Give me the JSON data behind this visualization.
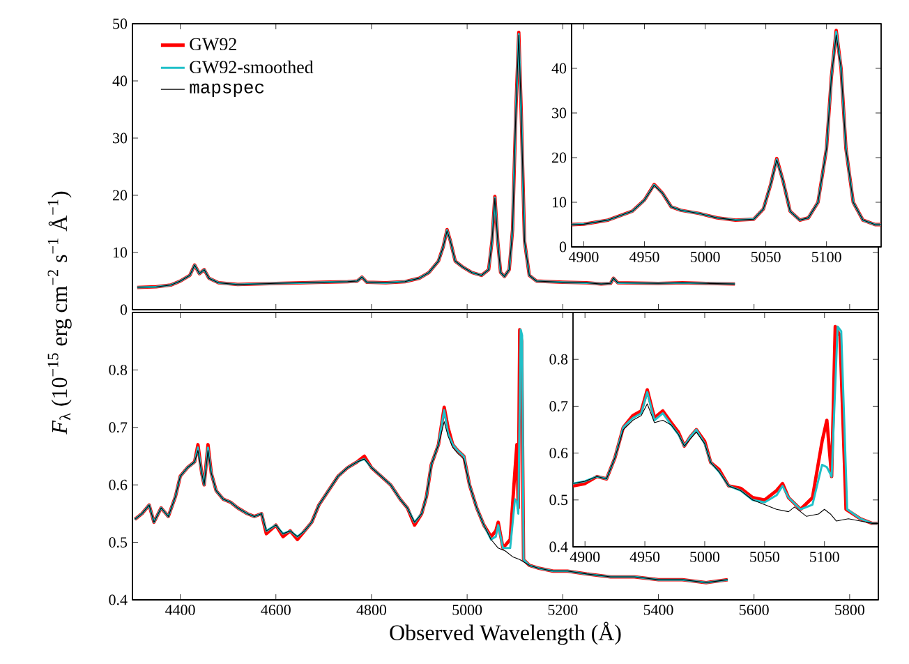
{
  "chart_data": [
    {
      "type": "line",
      "legend": "top left",
      "tick_labels": "y",
      "xlim": [
        4300,
        5860
      ],
      "ylim": [
        0,
        50
      ],
      "xticks": [
        4400,
        4600,
        4800,
        5000,
        5200,
        5400,
        5600,
        5800
      ],
      "yticks": [
        0,
        10,
        20,
        30,
        40,
        50
      ],
      "series": [
        {
          "name": "GW92",
          "color": "#ff0000",
          "x": [
            4310,
            4350,
            4380,
            4400,
            4420,
            4430,
            4440,
            4450,
            4460,
            4480,
            4520,
            4560,
            4600,
            4650,
            4700,
            4750,
            4770,
            4780,
            4790,
            4830,
            4870,
            4900,
            4920,
            4940,
            4950,
            4958,
            4965,
            4975,
            4990,
            5010,
            5030,
            5045,
            5052,
            5058,
            5064,
            5070,
            5078,
            5088,
            5095,
            5102,
            5108,
            5113,
            5120,
            5130,
            5145,
            5200,
            5250,
            5280,
            5300,
            5306,
            5315,
            5400,
            5450,
            5500,
            5560
          ],
          "values": [
            3.9,
            4.0,
            4.3,
            5.0,
            6.0,
            7.8,
            6.3,
            7.0,
            5.5,
            4.7,
            4.4,
            4.5,
            4.6,
            4.7,
            4.8,
            4.9,
            5.0,
            5.7,
            4.8,
            4.7,
            4.9,
            5.5,
            6.5,
            8.5,
            11,
            14,
            12,
            8.5,
            7.5,
            6.5,
            6.0,
            7,
            12,
            19.8,
            12,
            6.5,
            5.8,
            7,
            14,
            35,
            48.5,
            35,
            12,
            6,
            5.0,
            4.8,
            4.7,
            4.5,
            4.6,
            5.5,
            4.7,
            4.6,
            4.7,
            4.6,
            4.5
          ]
        },
        {
          "name": "GW92-smoothed",
          "color": "#20c0c8",
          "x": [
            4310,
            4350,
            4380,
            4400,
            4420,
            4430,
            4440,
            4450,
            4460,
            4480,
            4520,
            4560,
            4600,
            4650,
            4700,
            4750,
            4770,
            4780,
            4790,
            4830,
            4870,
            4900,
            4920,
            4940,
            4950,
            4958,
            4965,
            4975,
            4990,
            5010,
            5030,
            5045,
            5052,
            5058,
            5064,
            5070,
            5078,
            5088,
            5095,
            5102,
            5108,
            5113,
            5120,
            5130,
            5145,
            5200,
            5250,
            5280,
            5300,
            5306,
            5315,
            5400,
            5450,
            5500,
            5560
          ],
          "values": [
            3.9,
            4.0,
            4.3,
            5.0,
            6.0,
            7.8,
            6.3,
            7.0,
            5.5,
            4.7,
            4.4,
            4.5,
            4.6,
            4.7,
            4.8,
            4.9,
            5.0,
            5.7,
            4.8,
            4.7,
            4.9,
            5.5,
            6.5,
            8.5,
            11,
            13.9,
            12,
            8.5,
            7.5,
            6.5,
            6.0,
            7,
            12,
            19.6,
            12,
            6.5,
            5.8,
            7,
            14,
            35,
            48.2,
            35,
            12,
            6,
            5.0,
            4.8,
            4.7,
            4.5,
            4.6,
            5.5,
            4.7,
            4.6,
            4.7,
            4.6,
            4.5
          ]
        },
        {
          "name": "mapspec",
          "color": "#000000",
          "x": [
            4310,
            4350,
            4380,
            4400,
            4420,
            4430,
            4440,
            4450,
            4460,
            4480,
            4520,
            4560,
            4600,
            4650,
            4700,
            4750,
            4770,
            4780,
            4790,
            4830,
            4870,
            4900,
            4920,
            4940,
            4950,
            4958,
            4965,
            4975,
            4990,
            5010,
            5030,
            5045,
            5052,
            5058,
            5064,
            5070,
            5078,
            5088,
            5095,
            5102,
            5108,
            5113,
            5120,
            5130,
            5145,
            5200,
            5250,
            5280,
            5300,
            5306,
            5315,
            5400,
            5450,
            5500,
            5560
          ],
          "values": [
            3.9,
            4.0,
            4.3,
            5.0,
            6.0,
            7.8,
            6.3,
            7.0,
            5.5,
            4.7,
            4.4,
            4.5,
            4.6,
            4.7,
            4.8,
            4.9,
            5.0,
            5.7,
            4.8,
            4.7,
            4.9,
            5.5,
            6.5,
            8.5,
            11,
            13.8,
            12,
            8.5,
            7.5,
            6.5,
            6.0,
            7,
            12,
            19.5,
            12,
            6.5,
            5.8,
            7,
            14,
            35,
            48,
            35,
            12,
            6,
            5.0,
            4.8,
            4.7,
            4.5,
            4.6,
            5.5,
            4.7,
            4.6,
            4.7,
            4.6,
            4.5
          ]
        }
      ]
    },
    {
      "type": "line",
      "xlim": [
        4890,
        5145
      ],
      "ylim": [
        0,
        50
      ],
      "xticks": [
        4900,
        4950,
        5000,
        5050,
        5100
      ],
      "yticks": [
        0,
        10,
        20,
        30,
        40
      ],
      "series": [
        {
          "color": "#ff0000",
          "x": [
            4890,
            4900,
            4920,
            4940,
            4950,
            4958,
            4965,
            4972,
            4980,
            4995,
            5010,
            5025,
            5040,
            5048,
            5054,
            5059,
            5064,
            5070,
            5078,
            5085,
            5093,
            5100,
            5104,
            5108,
            5112,
            5116,
            5122,
            5130,
            5140,
            5145
          ],
          "values": [
            5.0,
            5.1,
            6.0,
            8.0,
            10.5,
            14,
            12,
            9,
            8.2,
            7.5,
            6.5,
            6.0,
            6.2,
            8.5,
            14,
            19.8,
            15,
            8,
            6.0,
            6.5,
            10,
            22,
            38,
            48.5,
            40,
            22,
            10,
            6,
            5.0,
            5.0
          ]
        },
        {
          "color": "#20c0c8",
          "x": [
            4890,
            4900,
            4920,
            4940,
            4950,
            4958,
            4965,
            4972,
            4980,
            4995,
            5010,
            5025,
            5040,
            5048,
            5054,
            5059,
            5064,
            5070,
            5078,
            5085,
            5093,
            5100,
            5104,
            5108,
            5112,
            5116,
            5122,
            5130,
            5140,
            5145
          ],
          "values": [
            5.0,
            5.1,
            6.0,
            8.0,
            10.5,
            13.9,
            12,
            9,
            8.2,
            7.5,
            6.5,
            6.0,
            6.2,
            8.5,
            14,
            19.6,
            15,
            8,
            6.0,
            6.5,
            10,
            22,
            38,
            48.2,
            40,
            22,
            10,
            6,
            5.0,
            5.0
          ]
        },
        {
          "color": "#000000",
          "x": [
            4890,
            4900,
            4920,
            4940,
            4950,
            4958,
            4965,
            4972,
            4980,
            4995,
            5010,
            5025,
            5040,
            5048,
            5054,
            5059,
            5064,
            5070,
            5078,
            5085,
            5093,
            5100,
            5104,
            5108,
            5112,
            5116,
            5122,
            5130,
            5140,
            5145
          ],
          "values": [
            5.0,
            5.1,
            6.0,
            8.0,
            10.5,
            13.8,
            12,
            9,
            8.2,
            7.5,
            6.5,
            6.0,
            6.2,
            8.5,
            14,
            19.5,
            15,
            8,
            6.0,
            6.5,
            10,
            22,
            38,
            47.5,
            40,
            22,
            10,
            6,
            5.0,
            5.0
          ]
        }
      ]
    },
    {
      "type": "line",
      "xlabel": "Observed Wavelength (Å)",
      "ylabel": "*F*$_{λ}$ (10$^{−15}$ erg cm$^{−2}$ s$^{−1}$ Å$^{−1}$)",
      "xlim": [
        4300,
        5860
      ],
      "ylim": [
        0.4,
        0.9
      ],
      "xticks": [
        4400,
        4600,
        4800,
        5000,
        5200,
        5400,
        5600,
        5800
      ],
      "yticks": [
        0.4,
        0.5,
        0.6,
        0.7,
        0.8
      ],
      "series": [
        {
          "color": "#ff0000",
          "x": [
            4305,
            4320,
            4335,
            4345,
            4360,
            4375,
            4390,
            4400,
            4415,
            4430,
            4437,
            4445,
            4450,
            4458,
            4465,
            4475,
            4490,
            4505,
            4520,
            4540,
            4555,
            4570,
            4580,
            4600,
            4615,
            4630,
            4645,
            4660,
            4675,
            4690,
            4710,
            4730,
            4750,
            4770,
            4785,
            4800,
            4820,
            4840,
            4860,
            4875,
            4890,
            4905,
            4915,
            4925,
            4940,
            4952,
            4960,
            4970,
            4980,
            4993,
            5005,
            5020,
            5035,
            5050,
            5060,
            5065,
            5075,
            5090,
            5100,
            5104,
            5107,
            5110,
            5114,
            5118,
            5130,
            5150,
            5180,
            5210,
            5250,
            5300,
            5350,
            5400,
            5450,
            5500,
            5545
          ],
          "values": [
            0.54,
            0.55,
            0.565,
            0.535,
            0.56,
            0.545,
            0.58,
            0.615,
            0.63,
            0.64,
            0.67,
            0.62,
            0.6,
            0.67,
            0.62,
            0.59,
            0.575,
            0.57,
            0.56,
            0.55,
            0.545,
            0.55,
            0.515,
            0.53,
            0.51,
            0.52,
            0.505,
            0.52,
            0.535,
            0.565,
            0.59,
            0.615,
            0.63,
            0.64,
            0.65,
            0.63,
            0.615,
            0.6,
            0.575,
            0.56,
            0.53,
            0.55,
            0.58,
            0.635,
            0.67,
            0.735,
            0.7,
            0.67,
            0.66,
            0.65,
            0.6,
            0.56,
            0.53,
            0.51,
            0.52,
            0.535,
            0.49,
            0.505,
            0.625,
            0.67,
            0.56,
            0.87,
            0.85,
            0.47,
            0.46,
            0.455,
            0.45,
            0.45,
            0.445,
            0.44,
            0.44,
            0.435,
            0.435,
            0.43,
            0.435
          ]
        },
        {
          "color": "#20c0c8",
          "x": [
            4305,
            4320,
            4335,
            4345,
            4360,
            4375,
            4390,
            4400,
            4415,
            4430,
            4437,
            4445,
            4450,
            4458,
            4465,
            4475,
            4490,
            4505,
            4520,
            4540,
            4555,
            4570,
            4580,
            4600,
            4615,
            4630,
            4645,
            4660,
            4675,
            4690,
            4710,
            4730,
            4750,
            4770,
            4785,
            4800,
            4820,
            4840,
            4860,
            4875,
            4890,
            4905,
            4915,
            4925,
            4940,
            4952,
            4960,
            4970,
            4980,
            4993,
            5005,
            5020,
            5035,
            5050,
            5060,
            5065,
            5075,
            5090,
            5100,
            5104,
            5107,
            5112,
            5115,
            5118,
            5130,
            5150,
            5180,
            5210,
            5250,
            5300,
            5350,
            5400,
            5450,
            5500,
            5545
          ],
          "values": [
            0.54,
            0.55,
            0.565,
            0.535,
            0.56,
            0.545,
            0.58,
            0.615,
            0.63,
            0.64,
            0.665,
            0.62,
            0.6,
            0.665,
            0.62,
            0.59,
            0.575,
            0.57,
            0.56,
            0.55,
            0.545,
            0.55,
            0.52,
            0.53,
            0.515,
            0.52,
            0.51,
            0.52,
            0.535,
            0.565,
            0.59,
            0.615,
            0.63,
            0.64,
            0.645,
            0.63,
            0.615,
            0.6,
            0.575,
            0.56,
            0.535,
            0.55,
            0.58,
            0.635,
            0.67,
            0.73,
            0.69,
            0.67,
            0.66,
            0.65,
            0.6,
            0.56,
            0.53,
            0.505,
            0.51,
            0.53,
            0.49,
            0.49,
            0.575,
            0.57,
            0.55,
            0.87,
            0.86,
            0.47,
            0.46,
            0.455,
            0.45,
            0.45,
            0.445,
            0.44,
            0.44,
            0.435,
            0.435,
            0.43,
            0.435
          ]
        },
        {
          "color": "#000000",
          "x": [
            4305,
            4320,
            4335,
            4345,
            4360,
            4375,
            4390,
            4400,
            4415,
            4430,
            4437,
            4445,
            4450,
            4458,
            4465,
            4475,
            4490,
            4505,
            4520,
            4540,
            4555,
            4570,
            4580,
            4600,
            4615,
            4630,
            4645,
            4660,
            4675,
            4690,
            4710,
            4730,
            4750,
            4770,
            4785,
            4800,
            4820,
            4840,
            4860,
            4875,
            4890,
            4905,
            4915,
            4925,
            4940,
            4952,
            4960,
            4970,
            4980,
            4993,
            5005,
            5020,
            5035,
            5050,
            5065,
            5080,
            5095,
            5110,
            5130,
            5150,
            5180,
            5210,
            5250,
            5300,
            5350,
            5400,
            5450,
            5500,
            5545
          ],
          "values": [
            0.54,
            0.55,
            0.565,
            0.535,
            0.56,
            0.545,
            0.58,
            0.615,
            0.63,
            0.64,
            0.66,
            0.62,
            0.6,
            0.66,
            0.62,
            0.59,
            0.575,
            0.57,
            0.56,
            0.55,
            0.545,
            0.55,
            0.52,
            0.53,
            0.515,
            0.52,
            0.51,
            0.52,
            0.535,
            0.565,
            0.59,
            0.615,
            0.63,
            0.64,
            0.645,
            0.63,
            0.615,
            0.6,
            0.575,
            0.56,
            0.535,
            0.55,
            0.58,
            0.635,
            0.67,
            0.71,
            0.685,
            0.665,
            0.655,
            0.645,
            0.6,
            0.56,
            0.53,
            0.505,
            0.49,
            0.485,
            0.475,
            0.47,
            0.46,
            0.455,
            0.45,
            0.45,
            0.445,
            0.44,
            0.44,
            0.435,
            0.435,
            0.43,
            0.435
          ]
        }
      ]
    },
    {
      "type": "line",
      "xlim": [
        4890,
        5145
      ],
      "ylim": [
        0.4,
        0.9
      ],
      "xticks": [
        4900,
        4950,
        5000,
        5050,
        5100
      ],
      "yticks": [
        0.4,
        0.5,
        0.6,
        0.7,
        0.8
      ],
      "series": [
        {
          "color": "#ff0000",
          "x": [
            4890,
            4900,
            4910,
            4918,
            4925,
            4932,
            4940,
            4947,
            4952,
            4958,
            4965,
            4972,
            4978,
            4983,
            4988,
            4993,
            5000,
            5005,
            5012,
            5020,
            5030,
            5040,
            5050,
            5060,
            5065,
            5070,
            5080,
            5090,
            5098,
            5102,
            5106,
            5109,
            5113,
            5118,
            5130,
            5140,
            5145
          ],
          "values": [
            0.53,
            0.535,
            0.55,
            0.545,
            0.59,
            0.655,
            0.68,
            0.69,
            0.735,
            0.675,
            0.69,
            0.665,
            0.645,
            0.615,
            0.635,
            0.65,
            0.625,
            0.58,
            0.565,
            0.53,
            0.525,
            0.505,
            0.5,
            0.52,
            0.535,
            0.505,
            0.48,
            0.505,
            0.625,
            0.67,
            0.55,
            0.87,
            0.85,
            0.48,
            0.46,
            0.45,
            0.45
          ]
        },
        {
          "color": "#20c0c8",
          "x": [
            4890,
            4900,
            4910,
            4918,
            4925,
            4932,
            4940,
            4947,
            4952,
            4958,
            4965,
            4972,
            4978,
            4983,
            4988,
            4993,
            5000,
            5005,
            5012,
            5020,
            5030,
            5040,
            5050,
            5060,
            5065,
            5070,
            5080,
            5090,
            5098,
            5102,
            5106,
            5111,
            5114,
            5119,
            5130,
            5140,
            5145
          ],
          "values": [
            0.535,
            0.54,
            0.55,
            0.545,
            0.59,
            0.655,
            0.675,
            0.685,
            0.73,
            0.67,
            0.685,
            0.66,
            0.64,
            0.615,
            0.635,
            0.65,
            0.62,
            0.58,
            0.56,
            0.53,
            0.52,
            0.5,
            0.495,
            0.51,
            0.53,
            0.505,
            0.48,
            0.49,
            0.575,
            0.57,
            0.55,
            0.87,
            0.86,
            0.48,
            0.46,
            0.45,
            0.45
          ]
        },
        {
          "color": "#000000",
          "x": [
            4890,
            4900,
            4910,
            4918,
            4925,
            4932,
            4940,
            4947,
            4952,
            4958,
            4965,
            4972,
            4978,
            4983,
            4988,
            4993,
            5000,
            5005,
            5012,
            5020,
            5030,
            5040,
            5050,
            5060,
            5070,
            5075,
            5085,
            5095,
            5100,
            5105,
            5110,
            5120,
            5130,
            5140,
            5145
          ],
          "values": [
            0.535,
            0.54,
            0.55,
            0.545,
            0.59,
            0.65,
            0.67,
            0.68,
            0.705,
            0.665,
            0.67,
            0.66,
            0.64,
            0.615,
            0.63,
            0.645,
            0.62,
            0.58,
            0.56,
            0.53,
            0.52,
            0.5,
            0.49,
            0.48,
            0.475,
            0.485,
            0.465,
            0.47,
            0.48,
            0.47,
            0.455,
            0.46,
            0.455,
            0.45,
            0.45
          ]
        }
      ]
    }
  ]
}
